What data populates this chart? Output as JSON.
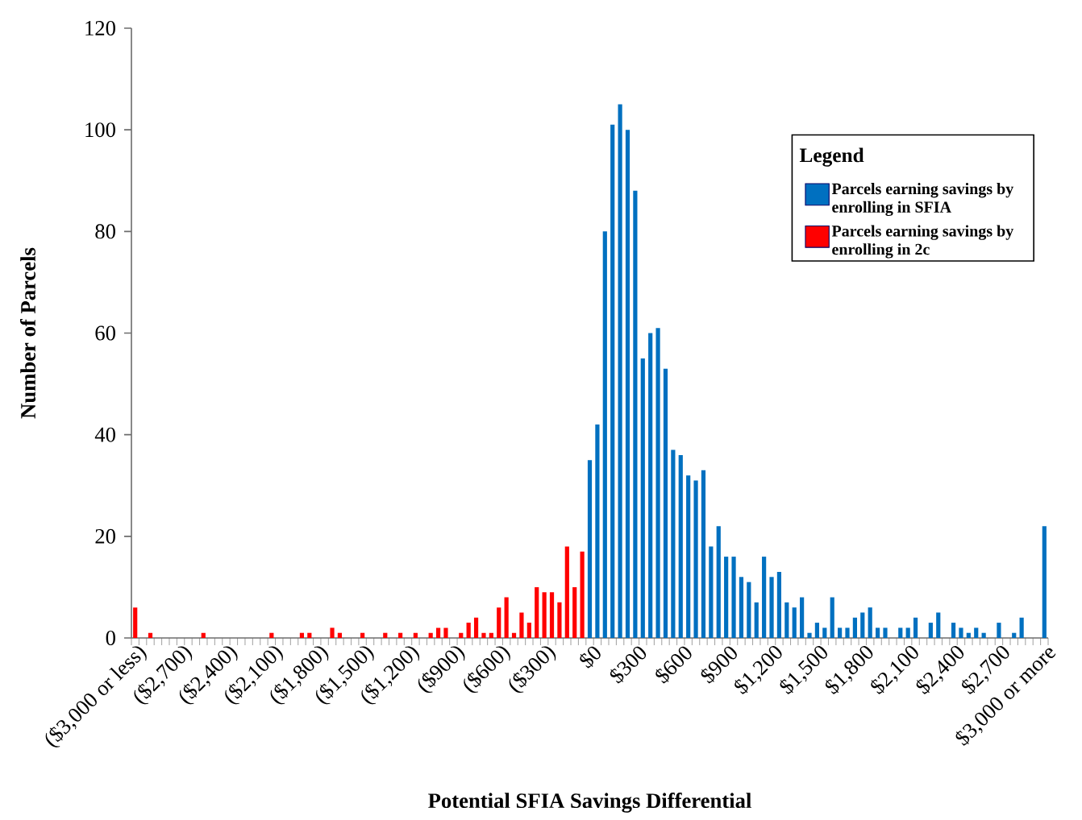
{
  "chart_data": {
    "type": "bar",
    "xlabel": "Potential SFIA Savings Differential",
    "ylabel": "Number of Parcels",
    "legend_title": "Legend",
    "legend": "top right",
    "categories": [
      "($3,000 or less)",
      null,
      null,
      null,
      null,
      null,
      "($2,700)",
      null,
      null,
      null,
      null,
      null,
      "($2,400)",
      null,
      null,
      null,
      null,
      null,
      "($2,100)",
      null,
      null,
      null,
      null,
      null,
      "($1,800)",
      null,
      null,
      null,
      null,
      null,
      "($1,500)",
      null,
      null,
      null,
      null,
      null,
      "($1,200)",
      null,
      null,
      null,
      null,
      null,
      "($900)",
      null,
      null,
      null,
      null,
      null,
      "($600)",
      null,
      null,
      null,
      null,
      null,
      "($300)",
      null,
      null,
      null,
      null,
      null,
      "$0",
      null,
      null,
      null,
      null,
      null,
      "$300",
      null,
      null,
      null,
      null,
      null,
      "$600",
      null,
      null,
      null,
      null,
      null,
      "$900",
      null,
      null,
      null,
      null,
      null,
      "$1,200",
      null,
      null,
      null,
      null,
      null,
      "$1,500",
      null,
      null,
      null,
      null,
      null,
      "$1,800",
      null,
      null,
      null,
      null,
      null,
      "$2,100",
      null,
      null,
      null,
      null,
      null,
      "$2,400",
      null,
      null,
      null,
      null,
      null,
      "$2,700",
      null,
      null,
      null,
      null,
      null,
      "$3,000 or more"
    ],
    "series": [
      {
        "name": "Parcels earning savings by enrolling in SFIA",
        "color": "#0070c0",
        "values": [
          null,
          null,
          null,
          null,
          null,
          null,
          null,
          null,
          null,
          null,
          null,
          null,
          null,
          null,
          null,
          null,
          null,
          null,
          null,
          null,
          null,
          null,
          null,
          null,
          null,
          null,
          null,
          null,
          null,
          null,
          null,
          null,
          null,
          null,
          null,
          null,
          null,
          null,
          null,
          null,
          null,
          null,
          null,
          null,
          null,
          null,
          null,
          null,
          null,
          null,
          null,
          null,
          null,
          null,
          null,
          null,
          null,
          null,
          null,
          null,
          35,
          42,
          80,
          101,
          105,
          100,
          88,
          55,
          60,
          61,
          53,
          37,
          36,
          32,
          31,
          33,
          18,
          22,
          16,
          16,
          12,
          11,
          7,
          16,
          12,
          13,
          7,
          6,
          8,
          1,
          3,
          2,
          8,
          2,
          2,
          4,
          5,
          6,
          2,
          2,
          0,
          2,
          2,
          4,
          0,
          3,
          5,
          0,
          3,
          2,
          1,
          2,
          1,
          0,
          3,
          0,
          1,
          4,
          0,
          0,
          22
        ]
      },
      {
        "name": "Parcels earning savings by enrolling in 2c",
        "color": "#ff0000",
        "values": [
          6,
          0,
          1,
          0,
          0,
          0,
          0,
          0,
          0,
          1,
          0,
          0,
          0,
          0,
          0,
          0,
          0,
          0,
          1,
          0,
          0,
          0,
          1,
          1,
          0,
          0,
          2,
          1,
          0,
          0,
          1,
          0,
          0,
          1,
          0,
          1,
          0,
          1,
          0,
          1,
          2,
          2,
          0,
          1,
          3,
          4,
          1,
          1,
          6,
          8,
          1,
          5,
          3,
          10,
          9,
          9,
          7,
          18,
          10,
          17,
          null,
          null,
          null,
          null,
          null,
          null,
          null,
          null,
          null,
          null,
          null,
          null,
          null,
          null,
          null,
          null,
          null,
          null,
          null,
          null,
          null,
          null,
          null,
          null,
          null,
          null,
          null,
          null,
          null,
          null,
          null,
          null,
          null,
          null,
          null,
          null,
          null,
          null,
          null,
          null,
          null,
          null,
          null,
          null,
          null,
          null,
          null,
          null,
          null,
          null,
          null,
          null,
          null,
          null,
          null,
          null,
          null,
          null,
          null,
          null,
          null
        ]
      }
    ],
    "ylim": [
      0,
      120
    ],
    "yticks": [
      0,
      20,
      40,
      60,
      80,
      100,
      120
    ]
  }
}
